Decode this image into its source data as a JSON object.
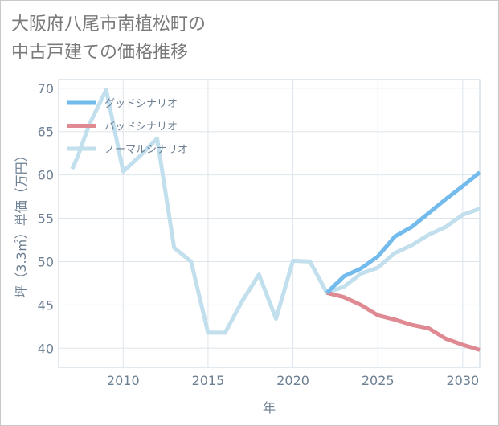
{
  "title_line1": "大阪府八尾市南植松町の",
  "title_line2": "中古戸建ての価格推移",
  "chart_data": {
    "type": "line",
    "xlabel": "年",
    "ylabel": "坪（3.3㎡）単価（万円）",
    "xlim": [
      2006.2,
      2031
    ],
    "ylim": [
      37.8,
      71
    ],
    "xticks": [
      2010,
      2015,
      2020,
      2025,
      2030
    ],
    "yticks": [
      40,
      45,
      50,
      55,
      60,
      65,
      70
    ],
    "grid": true,
    "legend_position": "top-left",
    "series": [
      {
        "name": "グッドシナリオ",
        "color": "#72bbec",
        "values": [
          [
            2022,
            46.4
          ],
          [
            2023,
            48.3
          ],
          [
            2024,
            49.2
          ],
          [
            2025,
            50.6
          ],
          [
            2026,
            52.9
          ],
          [
            2027,
            54.0
          ],
          [
            2028,
            55.6
          ],
          [
            2029,
            57.2
          ],
          [
            2030,
            58.7
          ],
          [
            2031,
            60.3
          ]
        ]
      },
      {
        "name": "バッドシナリオ",
        "color": "#df8a92",
        "values": [
          [
            2022,
            46.4
          ],
          [
            2023,
            45.9
          ],
          [
            2024,
            45.0
          ],
          [
            2025,
            43.8
          ],
          [
            2026,
            43.3
          ],
          [
            2027,
            42.7
          ],
          [
            2028,
            42.3
          ],
          [
            2029,
            41.1
          ],
          [
            2030,
            40.4
          ],
          [
            2031,
            39.8
          ]
        ]
      },
      {
        "name": "ノーマルシナリオ",
        "color": "#c1dfed",
        "values": [
          [
            2007,
            60.7
          ],
          [
            2007.3,
            62.0
          ],
          [
            2008,
            65.8
          ],
          [
            2009,
            69.8
          ],
          [
            2010,
            60.4
          ],
          [
            2011,
            62.2
          ],
          [
            2012,
            64.2
          ],
          [
            2013,
            51.6
          ],
          [
            2014,
            50.0
          ],
          [
            2015,
            41.8
          ],
          [
            2016,
            41.8
          ],
          [
            2017,
            45.4
          ],
          [
            2018,
            48.5
          ],
          [
            2019,
            43.4
          ],
          [
            2020,
            50.1
          ],
          [
            2021,
            50.0
          ],
          [
            2022,
            46.4
          ],
          [
            2023,
            47.1
          ],
          [
            2024,
            48.6
          ],
          [
            2025,
            49.3
          ],
          [
            2026,
            51.0
          ],
          [
            2027,
            51.9
          ],
          [
            2028,
            53.1
          ],
          [
            2029,
            54.0
          ],
          [
            2030,
            55.4
          ],
          [
            2031,
            56.1
          ]
        ]
      }
    ]
  }
}
